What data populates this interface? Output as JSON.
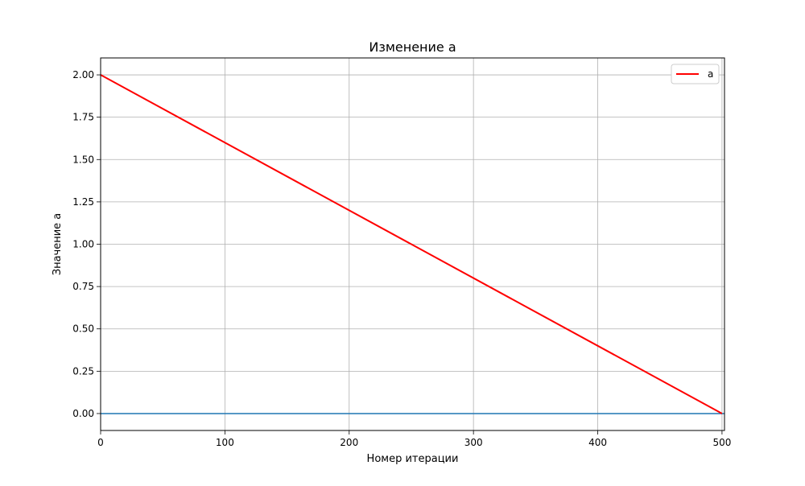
{
  "chart_data": {
    "type": "line",
    "title": "Изменение a",
    "xlabel": "Номер итерации",
    "ylabel": "Значение a",
    "xlim": [
      0,
      502
    ],
    "ylim": [
      -0.1,
      2.1
    ],
    "xticks": [
      0,
      100,
      200,
      300,
      400,
      500
    ],
    "xtick_labels": [
      "0",
      "100",
      "200",
      "300",
      "400",
      "500"
    ],
    "yticks": [
      0.0,
      0.25,
      0.5,
      0.75,
      1.0,
      1.25,
      1.5,
      1.75,
      2.0
    ],
    "ytick_labels": [
      "0.00",
      "0.25",
      "0.50",
      "0.75",
      "1.00",
      "1.25",
      "1.50",
      "1.75",
      "2.00"
    ],
    "grid": true,
    "legend_position": "top-right",
    "series": [
      {
        "name": "a",
        "color": "#ff0000",
        "x": [
          0,
          500
        ],
        "y": [
          2.0,
          0.0
        ]
      },
      {
        "color": "#1f77b4",
        "x": [
          0,
          502
        ],
        "y": [
          0.0,
          0.0
        ]
      }
    ]
  }
}
